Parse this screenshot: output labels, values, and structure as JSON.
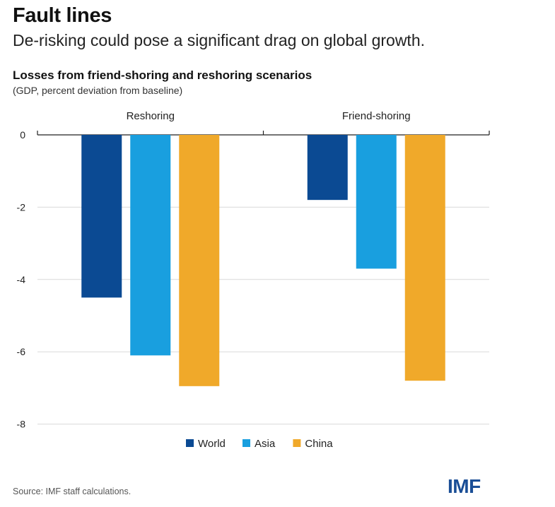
{
  "header": {
    "headline": "Fault lines",
    "subhead": "De-risking could pose a significant drag on global growth."
  },
  "chart_data": {
    "type": "bar",
    "title": "Losses from friend-shoring and reshoring scenarios",
    "subtitle": "(GDP, percent deviation from baseline)",
    "categories": [
      "Reshoring",
      "Friend-shoring"
    ],
    "series": [
      {
        "name": "World",
        "color": "#0b4a93",
        "values": [
          -4.5,
          -1.8
        ]
      },
      {
        "name": "Asia",
        "color": "#199fdf",
        "values": [
          -6.1,
          -3.7
        ]
      },
      {
        "name": "China",
        "color": "#f0a92a",
        "values": [
          -6.95,
          -6.8
        ]
      }
    ],
    "ylim": [
      -8,
      0
    ],
    "yticks": [
      0,
      -2,
      -4,
      -6,
      -8
    ],
    "ytick_labels": [
      "0",
      "-2",
      "-4",
      "-6",
      "-8"
    ],
    "grid": true,
    "legend_position": "bottom"
  },
  "footer": {
    "source": "Source: IMF staff calculations.",
    "logo_text": "IMF"
  }
}
